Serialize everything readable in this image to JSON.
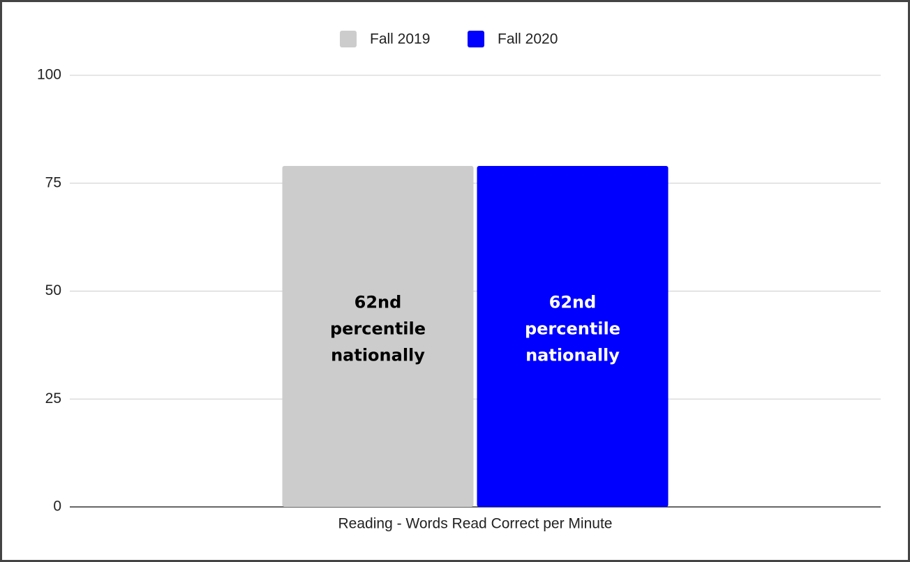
{
  "chart_data": {
    "type": "bar",
    "categories": [
      "Reading - Words Read Correct per Minute"
    ],
    "series": [
      {
        "name": "Fall 2019",
        "color": "#cccccc",
        "values": [
          79
        ],
        "annotation": [
          "62nd",
          "percentile",
          "nationally"
        ],
        "annotation_color": "#000000"
      },
      {
        "name": "Fall 2020",
        "color": "#0000ff",
        "values": [
          79
        ],
        "annotation": [
          "62nd",
          "percentile",
          "nationally"
        ],
        "annotation_color": "#ffffff"
      }
    ],
    "ylim": [
      0,
      100
    ],
    "yticks": [
      0,
      25,
      50,
      75,
      100
    ],
    "grid": true,
    "legend": "top"
  }
}
